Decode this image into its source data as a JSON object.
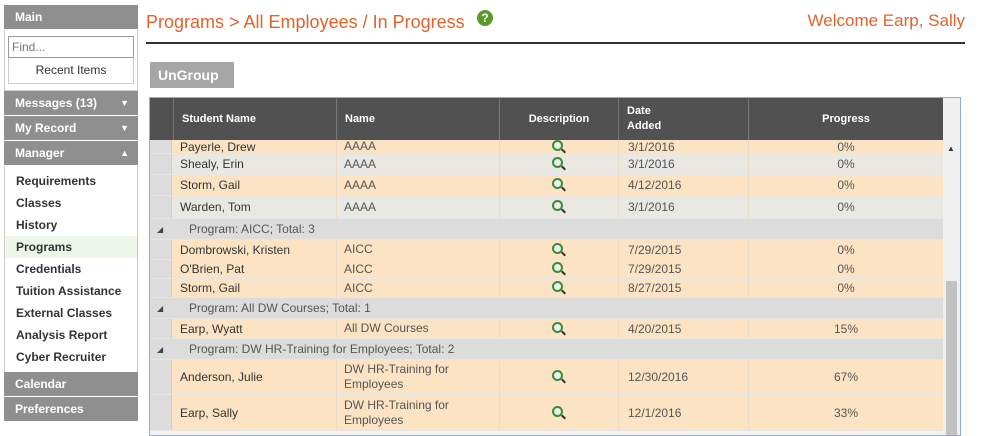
{
  "sidebar": {
    "main_label": "Main",
    "find_placeholder": "Find...",
    "recent_label": "Recent Items",
    "messages_label": "Messages (13)",
    "myrecord_label": "My Record",
    "manager_label": "Manager",
    "manager_items": [
      "Requirements",
      "Classes",
      "History",
      "Programs",
      "Credentials",
      "Tuition Assistance",
      "External Classes",
      "Analysis Report",
      "Cyber Recruiter"
    ],
    "calendar_label": "Calendar",
    "preferences_label": "Preferences"
  },
  "header": {
    "breadcrumb": "Programs > All Employees / In Progress",
    "help": "?",
    "welcome": "Welcome Earp, Sally"
  },
  "ungroup_label": "UnGroup",
  "grid": {
    "columns": {
      "student": "Student Name",
      "name": "Name",
      "description": "Description",
      "date_line1": "Date",
      "date_line2": "Added",
      "progress": "Progress"
    },
    "rows": [
      {
        "kind": "data",
        "student": "Payerle, Drew",
        "name": "AAAA",
        "date": "3/1/2016",
        "progress": "0%"
      },
      {
        "kind": "data",
        "student": "Shealy, Erin",
        "name": "AAAA",
        "date": "3/1/2016",
        "progress": "0%"
      },
      {
        "kind": "data",
        "student": "Storm, Gail",
        "name": "AAAA",
        "date": "4/12/2016",
        "progress": "0%"
      },
      {
        "kind": "data",
        "student": "Warden, Tom",
        "name": "AAAA",
        "date": "3/1/2016",
        "progress": "0%"
      },
      {
        "kind": "group",
        "label": "Program: AICC; Total: 3"
      },
      {
        "kind": "data",
        "student": "Dombrowski, Kristen",
        "name": "AICC",
        "date": "7/29/2015",
        "progress": "0%"
      },
      {
        "kind": "data",
        "student": "O'Brien, Pat",
        "name": "AICC",
        "date": "7/29/2015",
        "progress": "0%"
      },
      {
        "kind": "data",
        "student": "Storm, Gail",
        "name": "AICC",
        "date": "8/27/2015",
        "progress": "0%"
      },
      {
        "kind": "group",
        "label": "Program: All DW Courses; Total: 1"
      },
      {
        "kind": "data",
        "student": "Earp, Wyatt",
        "name": "All DW Courses",
        "date": "4/20/2015",
        "progress": "15%"
      },
      {
        "kind": "group",
        "label": "Program: DW HR-Training for Employees; Total: 2"
      },
      {
        "kind": "data",
        "student": "Anderson, Julie",
        "name": "DW HR-Training for Employees",
        "date": "12/30/2016",
        "progress": "67%"
      },
      {
        "kind": "data",
        "student": "Earp, Sally",
        "name": "DW HR-Training for Employees",
        "date": "12/1/2016",
        "progress": "33%"
      }
    ]
  }
}
